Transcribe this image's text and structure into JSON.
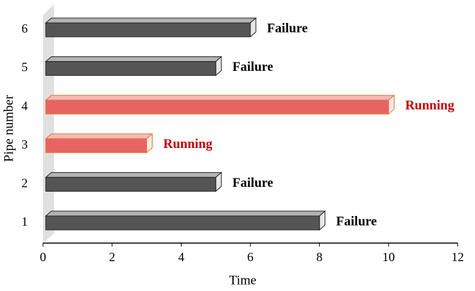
{
  "chart_data": {
    "type": "bar3d_horizontal",
    "x_label": "Time",
    "y_label": "Pipe number",
    "categories": [
      "1",
      "2",
      "3",
      "4",
      "5",
      "6"
    ],
    "values": [
      8,
      5,
      3,
      10,
      5,
      6
    ],
    "colors": [
      "#555555",
      "#555555",
      "#e86464",
      "#e86464",
      "#555555",
      "#555555"
    ],
    "bar_labels": [
      "Failure",
      "Failure",
      "Running",
      "Running",
      "Failure",
      "Failure"
    ],
    "label_colors": [
      "#000000",
      "#000000",
      "#c00000",
      "#c00000",
      "#000000",
      "#000000"
    ],
    "xlim": [
      0,
      12
    ],
    "xticks": [
      0,
      2,
      4,
      6,
      8,
      10,
      12
    ]
  }
}
